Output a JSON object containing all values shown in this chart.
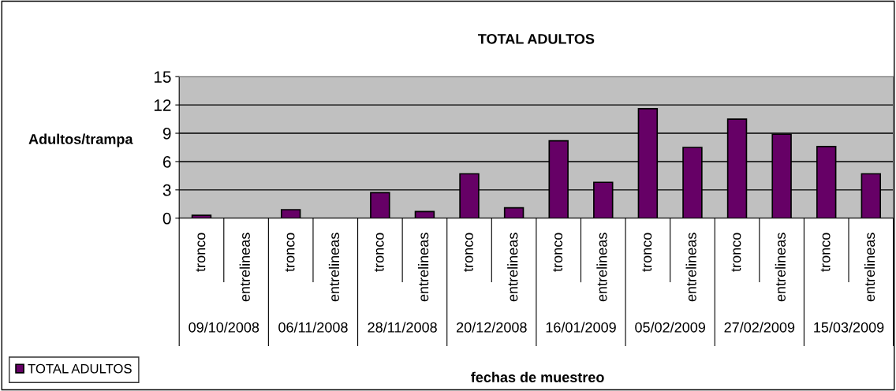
{
  "chart_data": {
    "type": "bar",
    "title": "TOTAL ADULTOS",
    "xlabel": "fechas de muestreo",
    "ylabel": "Adultos/trampa",
    "categories": [
      "tronco",
      "entrelineas",
      "tronco",
      "entrelineas",
      "tronco",
      "entrelineas",
      "tronco",
      "entrelineas",
      "tronco",
      "entrelineas",
      "tronco",
      "entrelineas",
      "tronco",
      "entrelineas",
      "tronco",
      "entrelineas"
    ],
    "series": [
      {
        "name": "TOTAL ADULTOS",
        "color": "#660066",
        "values": [
          0.3,
          0,
          0.9,
          0,
          2.7,
          0.7,
          4.7,
          1.1,
          8.2,
          3.8,
          11.6,
          7.5,
          10.5,
          8.9,
          7.6,
          4.7
        ]
      }
    ],
    "annotations": [
      "09/10/2008",
      "06/11/2008",
      "28/11/2008",
      "20/12/2008",
      "16/01/2009",
      "05/02/2009",
      "27/02/2009",
      "15/03/2009"
    ],
    "ylim": [
      0,
      15
    ],
    "yticks": [
      0,
      3,
      6,
      9,
      12,
      15
    ],
    "grid": "y",
    "legend": "bottom left"
  }
}
